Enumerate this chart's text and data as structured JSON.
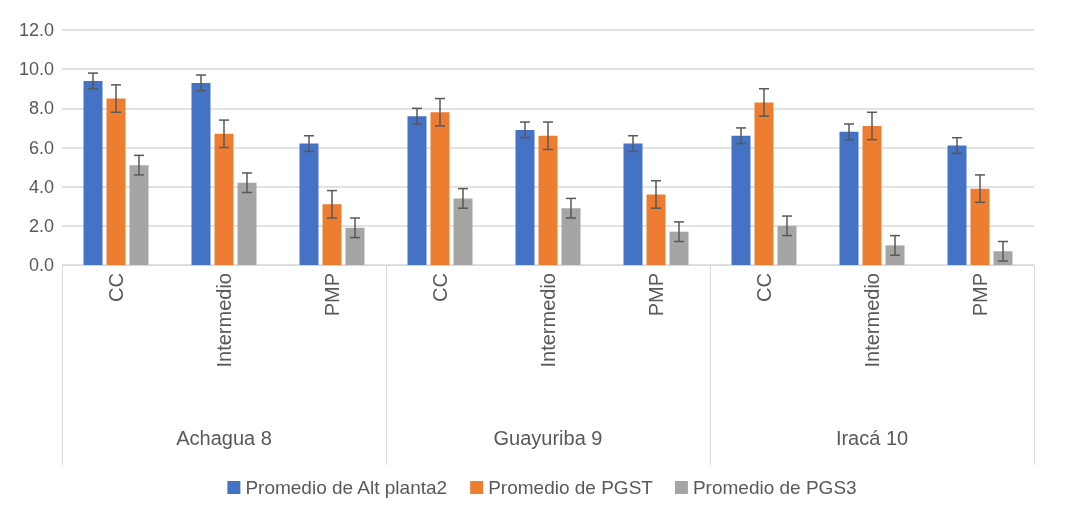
{
  "chart_data": {
    "type": "bar",
    "categories": [
      "CC",
      "Intermedio",
      "PMP",
      "CC",
      "Intermedio",
      "PMP",
      "CC",
      "Intermedio",
      "PMP"
    ],
    "annotations": [
      "Achagua 8",
      "Guayuriba 9",
      "Iracá 10"
    ],
    "series": [
      {
        "name": "Promedio de Alt planta2",
        "color": "#4472c4",
        "values": [
          9.4,
          9.3,
          6.2,
          7.6,
          6.9,
          6.2,
          6.6,
          6.8,
          6.1
        ],
        "errors": [
          0.4,
          0.4,
          0.4,
          0.4,
          0.4,
          0.4,
          0.4,
          0.4,
          0.4
        ]
      },
      {
        "name": "Promedio de PGST",
        "color": "#ed7d31",
        "values": [
          8.5,
          6.7,
          3.1,
          7.8,
          6.6,
          3.6,
          8.3,
          7.1,
          3.9
        ],
        "errors": [
          0.7,
          0.7,
          0.7,
          0.7,
          0.7,
          0.7,
          0.7,
          0.7,
          0.7
        ]
      },
      {
        "name": "Promedio de PGS3",
        "color": "#a5a5a5",
        "values": [
          5.1,
          4.2,
          1.9,
          3.4,
          2.9,
          1.7,
          2.0,
          1.0,
          0.7
        ],
        "errors": [
          0.5,
          0.5,
          0.5,
          0.5,
          0.5,
          0.5,
          0.5,
          0.5,
          0.5
        ]
      }
    ],
    "ylim": [
      0,
      12
    ],
    "yticks": [
      {
        "value": 0,
        "label": "0.0"
      },
      {
        "value": 2,
        "label": "2.0"
      },
      {
        "value": 4,
        "label": "4.0"
      },
      {
        "value": 6,
        "label": "6.0"
      },
      {
        "value": 8,
        "label": "8.0"
      },
      {
        "value": 10,
        "label": "10.0"
      },
      {
        "value": 12,
        "label": "12.0"
      }
    ],
    "grid": "y",
    "legend": "bottom"
  }
}
